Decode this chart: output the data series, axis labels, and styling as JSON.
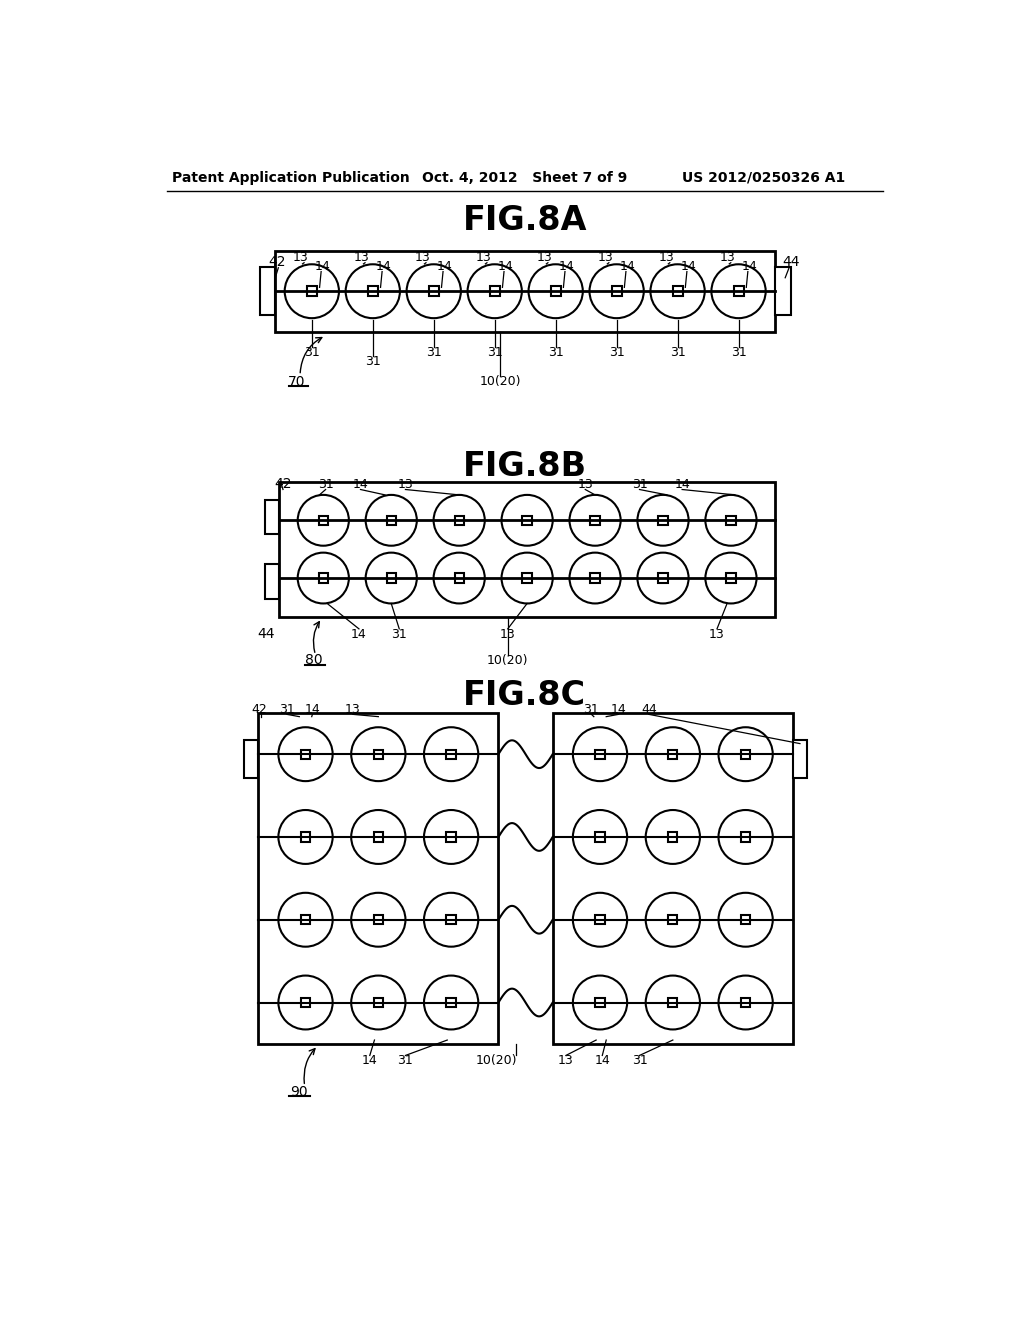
{
  "bg_color": "#ffffff",
  "line_color": "#000000",
  "header_left": "Patent Application Publication",
  "header_mid": "Oct. 4, 2012   Sheet 7 of 9",
  "header_right": "US 2012/0250326 A1",
  "fig8a_title": "FIG.8A",
  "fig8b_title": "FIG.8B",
  "fig8c_title": "FIG.8C"
}
